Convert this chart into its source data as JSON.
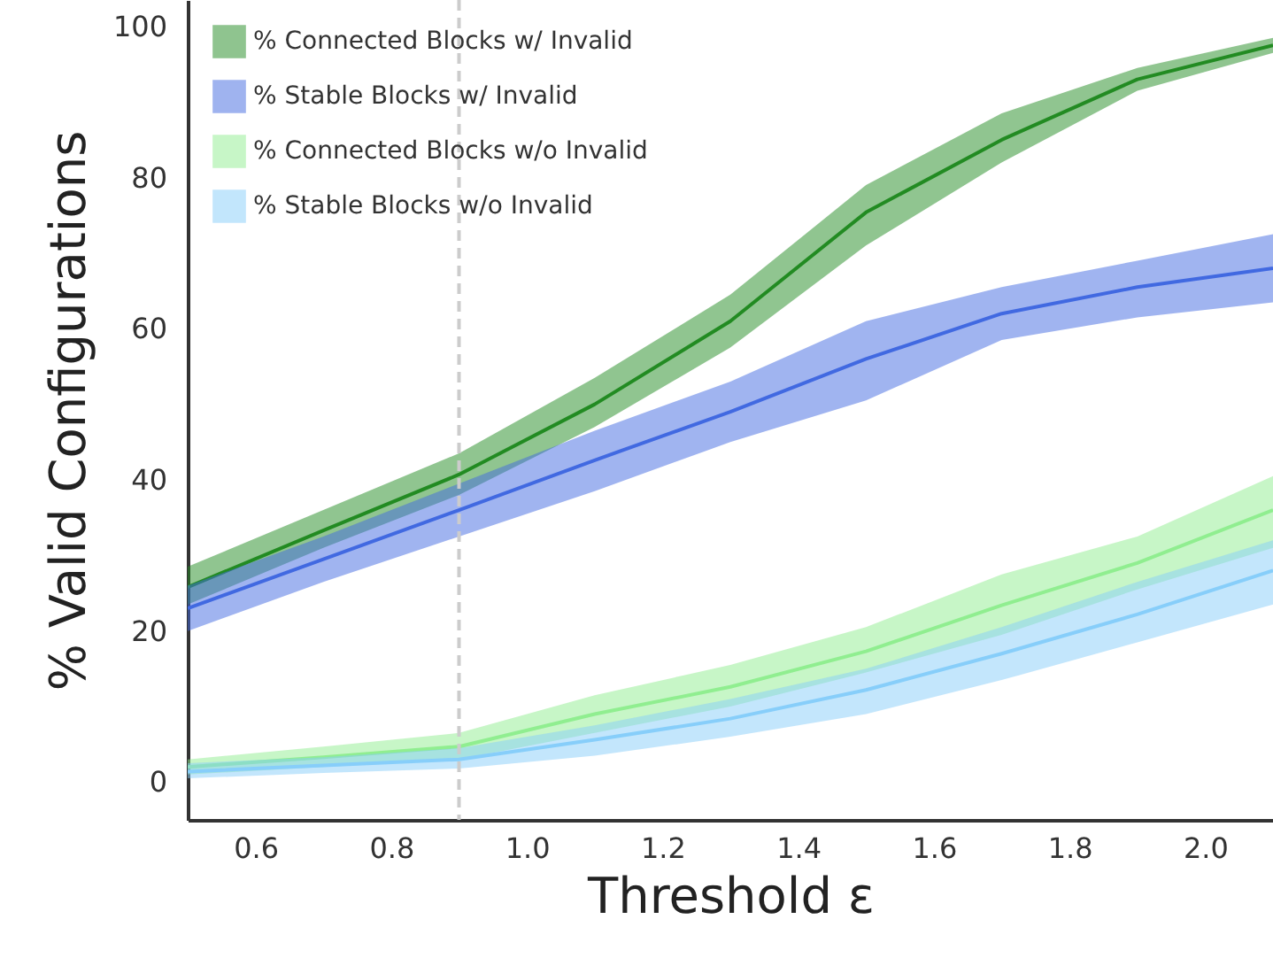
{
  "chart_data": {
    "type": "line",
    "xlabel": "Threshold ε",
    "ylabel": "% Valid Configurations",
    "x": [
      0.5,
      0.7,
      0.9,
      1.1,
      1.3,
      1.5,
      1.7,
      1.9,
      2.1
    ],
    "series": [
      {
        "name": "% Connected Blocks w/ Invalid",
        "color": "#228b22",
        "values": [
          25.8,
          33.3,
          40.7,
          50,
          61,
          75.4,
          85,
          93,
          97.5
        ],
        "lower": [
          23.5,
          31,
          38,
          47,
          57.5,
          71,
          82,
          91.5,
          96.5
        ],
        "upper": [
          28.5,
          36,
          43.5,
          53.5,
          64.5,
          79,
          88.5,
          94.5,
          98.5
        ]
      },
      {
        "name": "% Stable Blocks w/ Invalid",
        "color": "#4169e1",
        "values": [
          23,
          29.5,
          36,
          42.6,
          49,
          56,
          62,
          65.5,
          68
        ],
        "lower": [
          20,
          26.5,
          32.5,
          38.5,
          45,
          50.5,
          58.5,
          61.5,
          63.5
        ],
        "upper": [
          26,
          32.5,
          39.5,
          46.5,
          53,
          61,
          65.5,
          69,
          72.5
        ]
      },
      {
        "name": "% Connected Blocks w/o Invalid",
        "color": "#90ee90",
        "values": [
          2,
          3.3,
          4.7,
          9,
          12.6,
          17.3,
          23.4,
          29,
          36
        ],
        "lower": [
          1,
          2,
          3,
          6.5,
          10,
          14.5,
          19.5,
          25.5,
          31
        ],
        "upper": [
          3,
          4.7,
          6.5,
          11.5,
          15.5,
          20.5,
          27.5,
          32.5,
          40.5
        ]
      },
      {
        "name": "% Stable Blocks w/o Invalid",
        "color": "#87cefa",
        "values": [
          1.4,
          2.2,
          3,
          5.6,
          8.4,
          12.2,
          17,
          22.2,
          28
        ],
        "lower": [
          0.5,
          1.2,
          1.8,
          3.5,
          6,
          9,
          13.5,
          18.5,
          23.5
        ],
        "upper": [
          2.5,
          3.3,
          4.5,
          7.5,
          11,
          15,
          20.5,
          26.5,
          32
        ]
      }
    ],
    "xlim": [
      0.5,
      2.1
    ],
    "ylim": [
      -5,
      103.5
    ],
    "xticks": [
      0.6,
      0.8,
      {
        "value": 1,
        "label": "1.0"
      },
      1.2,
      1.4,
      1.6,
      1.8,
      {
        "value": 2,
        "label": "2.0"
      }
    ],
    "yticks": [
      0,
      20,
      40,
      60,
      80,
      100
    ],
    "ref_lines": [
      {
        "axis": "x",
        "value": 0.9,
        "color": "#cccccc",
        "line_style": "dashed"
      }
    ],
    "legend": "top left",
    "grid": false
  }
}
